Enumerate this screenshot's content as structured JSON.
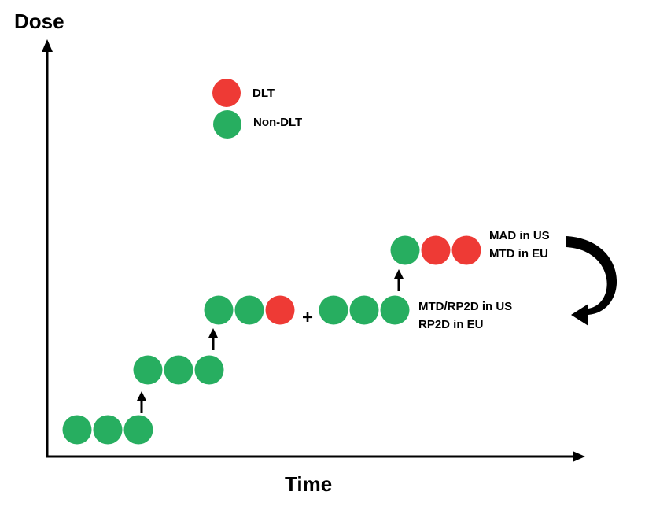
{
  "axes": {
    "y_label": "Dose",
    "x_label": "Time"
  },
  "legend": {
    "items": [
      {
        "label": "DLT",
        "color": "#ee3a35"
      },
      {
        "label": "Non-DLT",
        "color": "#27ae60"
      }
    ]
  },
  "colors": {
    "dlt": "#ee3a35",
    "non_dlt": "#27ae60",
    "ink": "#000000"
  },
  "cohorts": [
    {
      "name": "cohort-1",
      "outcomes": [
        "non-dlt",
        "non-dlt",
        "non-dlt"
      ]
    },
    {
      "name": "cohort-2",
      "outcomes": [
        "non-dlt",
        "non-dlt",
        "non-dlt"
      ]
    },
    {
      "name": "cohort-3",
      "outcomes": [
        "non-dlt",
        "non-dlt",
        "dlt"
      ]
    },
    {
      "name": "cohort-3-expansion",
      "outcomes": [
        "non-dlt",
        "non-dlt",
        "non-dlt"
      ]
    },
    {
      "name": "cohort-4",
      "outcomes": [
        "non-dlt",
        "dlt",
        "dlt"
      ]
    }
  ],
  "plus_sign": "+",
  "annotations": {
    "mtd_rp2d": {
      "line1": "MTD/RP2D in US",
      "line2": "RP2D in EU"
    },
    "mad_mtd": {
      "line1": "MAD in US",
      "line2": "MTD in EU"
    }
  }
}
